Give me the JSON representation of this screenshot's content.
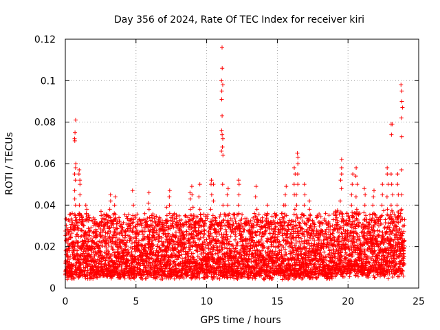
{
  "chart_data": {
    "type": "scatter",
    "title": "Day 356 of 2024, Rate Of TEC Index for receiver kiri",
    "xlabel": "GPS time / hours",
    "ylabel": "ROTI / TECUs",
    "xlim": [
      0,
      25
    ],
    "ylim": [
      0,
      0.12
    ],
    "x_ticks": [
      0,
      5,
      10,
      15,
      20,
      25
    ],
    "x_tick_labels": [
      "0",
      "5",
      "10",
      "15",
      "20",
      "25"
    ],
    "y_ticks": [
      0,
      0.02,
      0.04,
      0.06,
      0.08,
      0.1,
      0.12
    ],
    "y_tick_labels": [
      "0",
      "0.02",
      "0.04",
      "0.06",
      "0.08",
      "0.1",
      "0.12"
    ],
    "grid": true,
    "marker": "+",
    "colors": {
      "series": "#ff0000",
      "grid": "#a0a0a0",
      "axis": "#000000"
    },
    "series": [
      {
        "name": "ROTI",
        "bulk_band": {
          "x_range": [
            0,
            24
          ],
          "typical_range": [
            0.004,
            0.03
          ]
        },
        "bursts": [
          {
            "x": 0.05,
            "values": [
              0.007,
              0.009,
              0.012,
              0.015,
              0.018
            ]
          },
          {
            "x": 0.7,
            "values": [
              0.035,
              0.04,
              0.043,
              0.047,
              0.052,
              0.055,
              0.058,
              0.06,
              0.071,
              0.072,
              0.075,
              0.081
            ]
          },
          {
            "x": 1.0,
            "values": [
              0.036,
              0.04,
              0.045,
              0.05,
              0.052,
              0.055,
              0.057
            ]
          },
          {
            "x": 1.5,
            "values": [
              0.033,
              0.036,
              0.038,
              0.04
            ]
          },
          {
            "x": 2.5,
            "values": [
              0.032,
              0.035,
              0.037
            ]
          },
          {
            "x": 3.2,
            "values": [
              0.034,
              0.038,
              0.042,
              0.045
            ]
          },
          {
            "x": 3.5,
            "values": [
              0.033,
              0.036,
              0.04,
              0.044
            ]
          },
          {
            "x": 4.8,
            "values": [
              0.035,
              0.04,
              0.047
            ]
          },
          {
            "x": 5.9,
            "values": [
              0.034,
              0.038,
              0.041,
              0.046
            ]
          },
          {
            "x": 7.2,
            "values": [
              0.031,
              0.035,
              0.039
            ]
          },
          {
            "x": 7.4,
            "values": [
              0.036,
              0.04,
              0.044,
              0.047
            ]
          },
          {
            "x": 8.8,
            "values": [
              0.033,
              0.038,
              0.043,
              0.046
            ]
          },
          {
            "x": 9.0,
            "values": [
              0.035,
              0.039,
              0.045,
              0.049
            ]
          },
          {
            "x": 9.5,
            "values": [
              0.038,
              0.044,
              0.05
            ]
          },
          {
            "x": 10.3,
            "values": [
              0.038,
              0.045,
              0.05,
              0.052
            ]
          },
          {
            "x": 10.5,
            "values": [
              0.035,
              0.042,
              0.05
            ]
          },
          {
            "x": 11.1,
            "values": [
              0.04,
              0.05,
              0.064,
              0.066,
              0.068,
              0.072,
              0.074,
              0.076,
              0.083,
              0.091,
              0.095,
              0.098,
              0.1,
              0.106,
              0.116
            ]
          },
          {
            "x": 11.5,
            "values": [
              0.035,
              0.04,
              0.045,
              0.048
            ]
          },
          {
            "x": 12.3,
            "values": [
              0.036,
              0.04,
              0.045,
              0.05,
              0.052
            ]
          },
          {
            "x": 13.5,
            "values": [
              0.033,
              0.038,
              0.044,
              0.049
            ]
          },
          {
            "x": 14.3,
            "values": [
              0.032,
              0.036,
              0.04
            ]
          },
          {
            "x": 15.4,
            "values": [
              0.032,
              0.036,
              0.04
            ]
          },
          {
            "x": 15.6,
            "values": [
              0.035,
              0.04,
              0.045,
              0.049
            ]
          },
          {
            "x": 16.2,
            "values": [
              0.038,
              0.045,
              0.05,
              0.055,
              0.058
            ]
          },
          {
            "x": 16.4,
            "values": [
              0.04,
              0.045,
              0.05,
              0.055,
              0.06,
              0.063,
              0.065
            ]
          },
          {
            "x": 16.9,
            "values": [
              0.035,
              0.04,
              0.045,
              0.05
            ]
          },
          {
            "x": 17.3,
            "values": [
              0.035,
              0.038,
              0.042
            ]
          },
          {
            "x": 19.5,
            "values": [
              0.036,
              0.042,
              0.048,
              0.052,
              0.055,
              0.058,
              0.062
            ]
          },
          {
            "x": 20.3,
            "values": [
              0.035,
              0.04,
              0.045,
              0.05,
              0.055
            ]
          },
          {
            "x": 20.6,
            "values": [
              0.038,
              0.044,
              0.05,
              0.054,
              0.058
            ]
          },
          {
            "x": 21.2,
            "values": [
              0.035,
              0.04,
              0.045,
              0.048
            ]
          },
          {
            "x": 21.8,
            "values": [
              0.036,
              0.04,
              0.044,
              0.047
            ]
          },
          {
            "x": 22.4,
            "values": [
              0.035,
              0.04,
              0.045,
              0.05
            ]
          },
          {
            "x": 22.8,
            "values": [
              0.038,
              0.044,
              0.05,
              0.055,
              0.058
            ]
          },
          {
            "x": 23.1,
            "values": [
              0.04,
              0.045,
              0.05,
              0.055,
              0.074,
              0.079,
              0.079
            ]
          },
          {
            "x": 23.5,
            "values": [
              0.04,
              0.045,
              0.05,
              0.055
            ]
          },
          {
            "x": 23.8,
            "values": [
              0.038,
              0.045,
              0.057,
              0.073,
              0.082,
              0.087,
              0.09,
              0.095,
              0.098
            ]
          }
        ]
      }
    ]
  }
}
